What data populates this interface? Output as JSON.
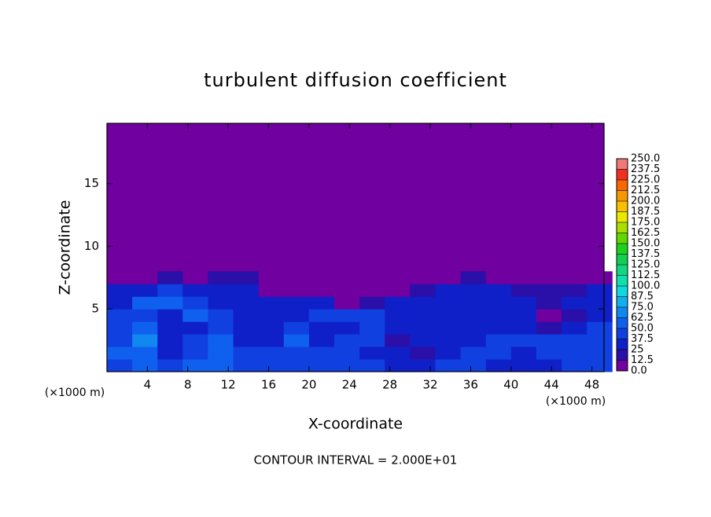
{
  "chart_data": {
    "type": "contour",
    "title": "turbulent diffusion coefficient",
    "x_label": "X-coordinate",
    "y_label": "Z-coordinate",
    "x_unit": "(×1000 m)",
    "footer": "CONTOUR INTERVAL = 2.000E+01",
    "xlim": [
      0,
      49.2
    ],
    "ylim": [
      0,
      19.8
    ],
    "xticks": [
      4,
      8,
      12,
      16,
      20,
      24,
      28,
      32,
      36,
      40,
      44,
      48
    ],
    "yticks": [
      5,
      10,
      15
    ],
    "field": {
      "x": [
        1.25,
        3.75,
        6.25,
        8.75,
        11.25,
        13.75,
        16.25,
        18.75,
        21.25,
        23.75,
        26.25,
        28.75,
        31.25,
        33.75,
        36.25,
        38.75,
        41.25,
        43.75,
        46.25,
        48.75
      ],
      "z": [
        0.5,
        1.5,
        2.5,
        3.5,
        4.5,
        5.5,
        6.5,
        7.5
      ],
      "values": [
        [
          45,
          55,
          40,
          50,
          60,
          40,
          45,
          40,
          42,
          40,
          38,
          30,
          28,
          40,
          38,
          35,
          30,
          35,
          40,
          38
        ],
        [
          50,
          60,
          35,
          45,
          55,
          45,
          40,
          42,
          40,
          45,
          35,
          25,
          20,
          35,
          40,
          38,
          35,
          40,
          42,
          40
        ],
        [
          45,
          65,
          30,
          40,
          50,
          35,
          30,
          50,
          35,
          40,
          40,
          20,
          25,
          30,
          35,
          40,
          40,
          42,
          45,
          40
        ],
        [
          40,
          55,
          30,
          35,
          45,
          30,
          35,
          45,
          30,
          35,
          40,
          35,
          30,
          25,
          30,
          35,
          30,
          20,
          35,
          40
        ],
        [
          38,
          45,
          35,
          60,
          40,
          30,
          30,
          35,
          40,
          45,
          45,
          35,
          30,
          25,
          30,
          30,
          25,
          10,
          15,
          35
        ],
        [
          35,
          50,
          55,
          45,
          35,
          30,
          25,
          35,
          30,
          10,
          20,
          30,
          35,
          35,
          30,
          25,
          30,
          20,
          25,
          30
        ],
        [
          25,
          30,
          40,
          35,
          30,
          30,
          10,
          0,
          0,
          0,
          0,
          0,
          20,
          30,
          30,
          25,
          20,
          20,
          15,
          25
        ],
        [
          0,
          10,
          15,
          10,
          20,
          20,
          0,
          0,
          0,
          0,
          0,
          0,
          0,
          10,
          15,
          5,
          0,
          0,
          0,
          5
        ]
      ]
    },
    "colorbar": {
      "levels": [
        {
          "value": 0,
          "label": "0.0"
        },
        12.5,
        25.0,
        37.5,
        {
          "value": 50,
          "label": "50.0"
        },
        62.5,
        {
          "value": 75,
          "label": "75.0"
        },
        87.5,
        {
          "value": 100,
          "label": "100.0"
        },
        112.5,
        {
          "value": 125,
          "label": "125.0"
        },
        137.5,
        {
          "value": 150,
          "label": "150.0"
        },
        162.5,
        {
          "value": 175,
          "label": "175.0"
        },
        187.5,
        {
          "value": 200,
          "label": "200.0"
        },
        212.5,
        {
          "value": 225,
          "label": "225.0"
        },
        237.5,
        {
          "value": 250,
          "label": "250.0"
        }
      ],
      "colors": [
        "#7000a0",
        "#2a10a8",
        "#1020c8",
        "#1040e0",
        "#1060f0",
        "#1088f0",
        "#10b0f0",
        "#10d8e0",
        "#10e0b0",
        "#10d880",
        "#10d050",
        "#20d020",
        "#60d800",
        "#a8e000",
        "#e8e800",
        "#f8c000",
        "#f89800",
        "#f86800",
        "#f03020",
        "#f07878"
      ]
    }
  }
}
